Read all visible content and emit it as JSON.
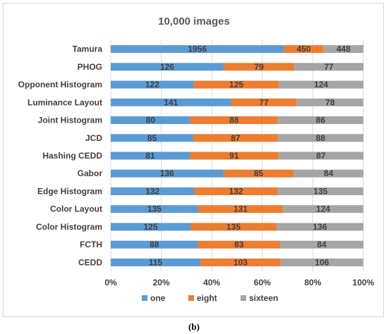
{
  "caption": "(b)",
  "chart_data": {
    "type": "bar",
    "orientation": "horizontal",
    "stacked": "percent",
    "title": "10,000 images",
    "xlabel": "",
    "ylabel": "",
    "xlim": [
      0,
      100
    ],
    "xticks": [
      "0%",
      "20%",
      "40%",
      "60%",
      "80%",
      "100%"
    ],
    "grid": true,
    "legend_position": "bottom",
    "categories": [
      "Tamura",
      "PHOG",
      "Opponent Histogram",
      "Luminance Layout",
      "Joint Histogram",
      "JCD",
      "Hashing CEDD",
      "Gabor",
      "Edge Histogram",
      "Color Layout",
      "Color Histogram",
      "FCTH",
      "CEDD"
    ],
    "series": [
      {
        "name": "one",
        "color": "#5b9bd5",
        "values": [
          1956,
          126,
          122,
          141,
          80,
          85,
          81,
          136,
          132,
          135,
          125,
          88,
          115
        ]
      },
      {
        "name": "eight",
        "color": "#ed7d31",
        "values": [
          450,
          79,
          125,
          77,
          88,
          87,
          91,
          85,
          132,
          131,
          135,
          83,
          103
        ]
      },
      {
        "name": "sixteen",
        "color": "#a5a5a5",
        "values": [
          448,
          77,
          124,
          78,
          86,
          88,
          87,
          84,
          135,
          124,
          136,
          84,
          106
        ]
      }
    ]
  }
}
